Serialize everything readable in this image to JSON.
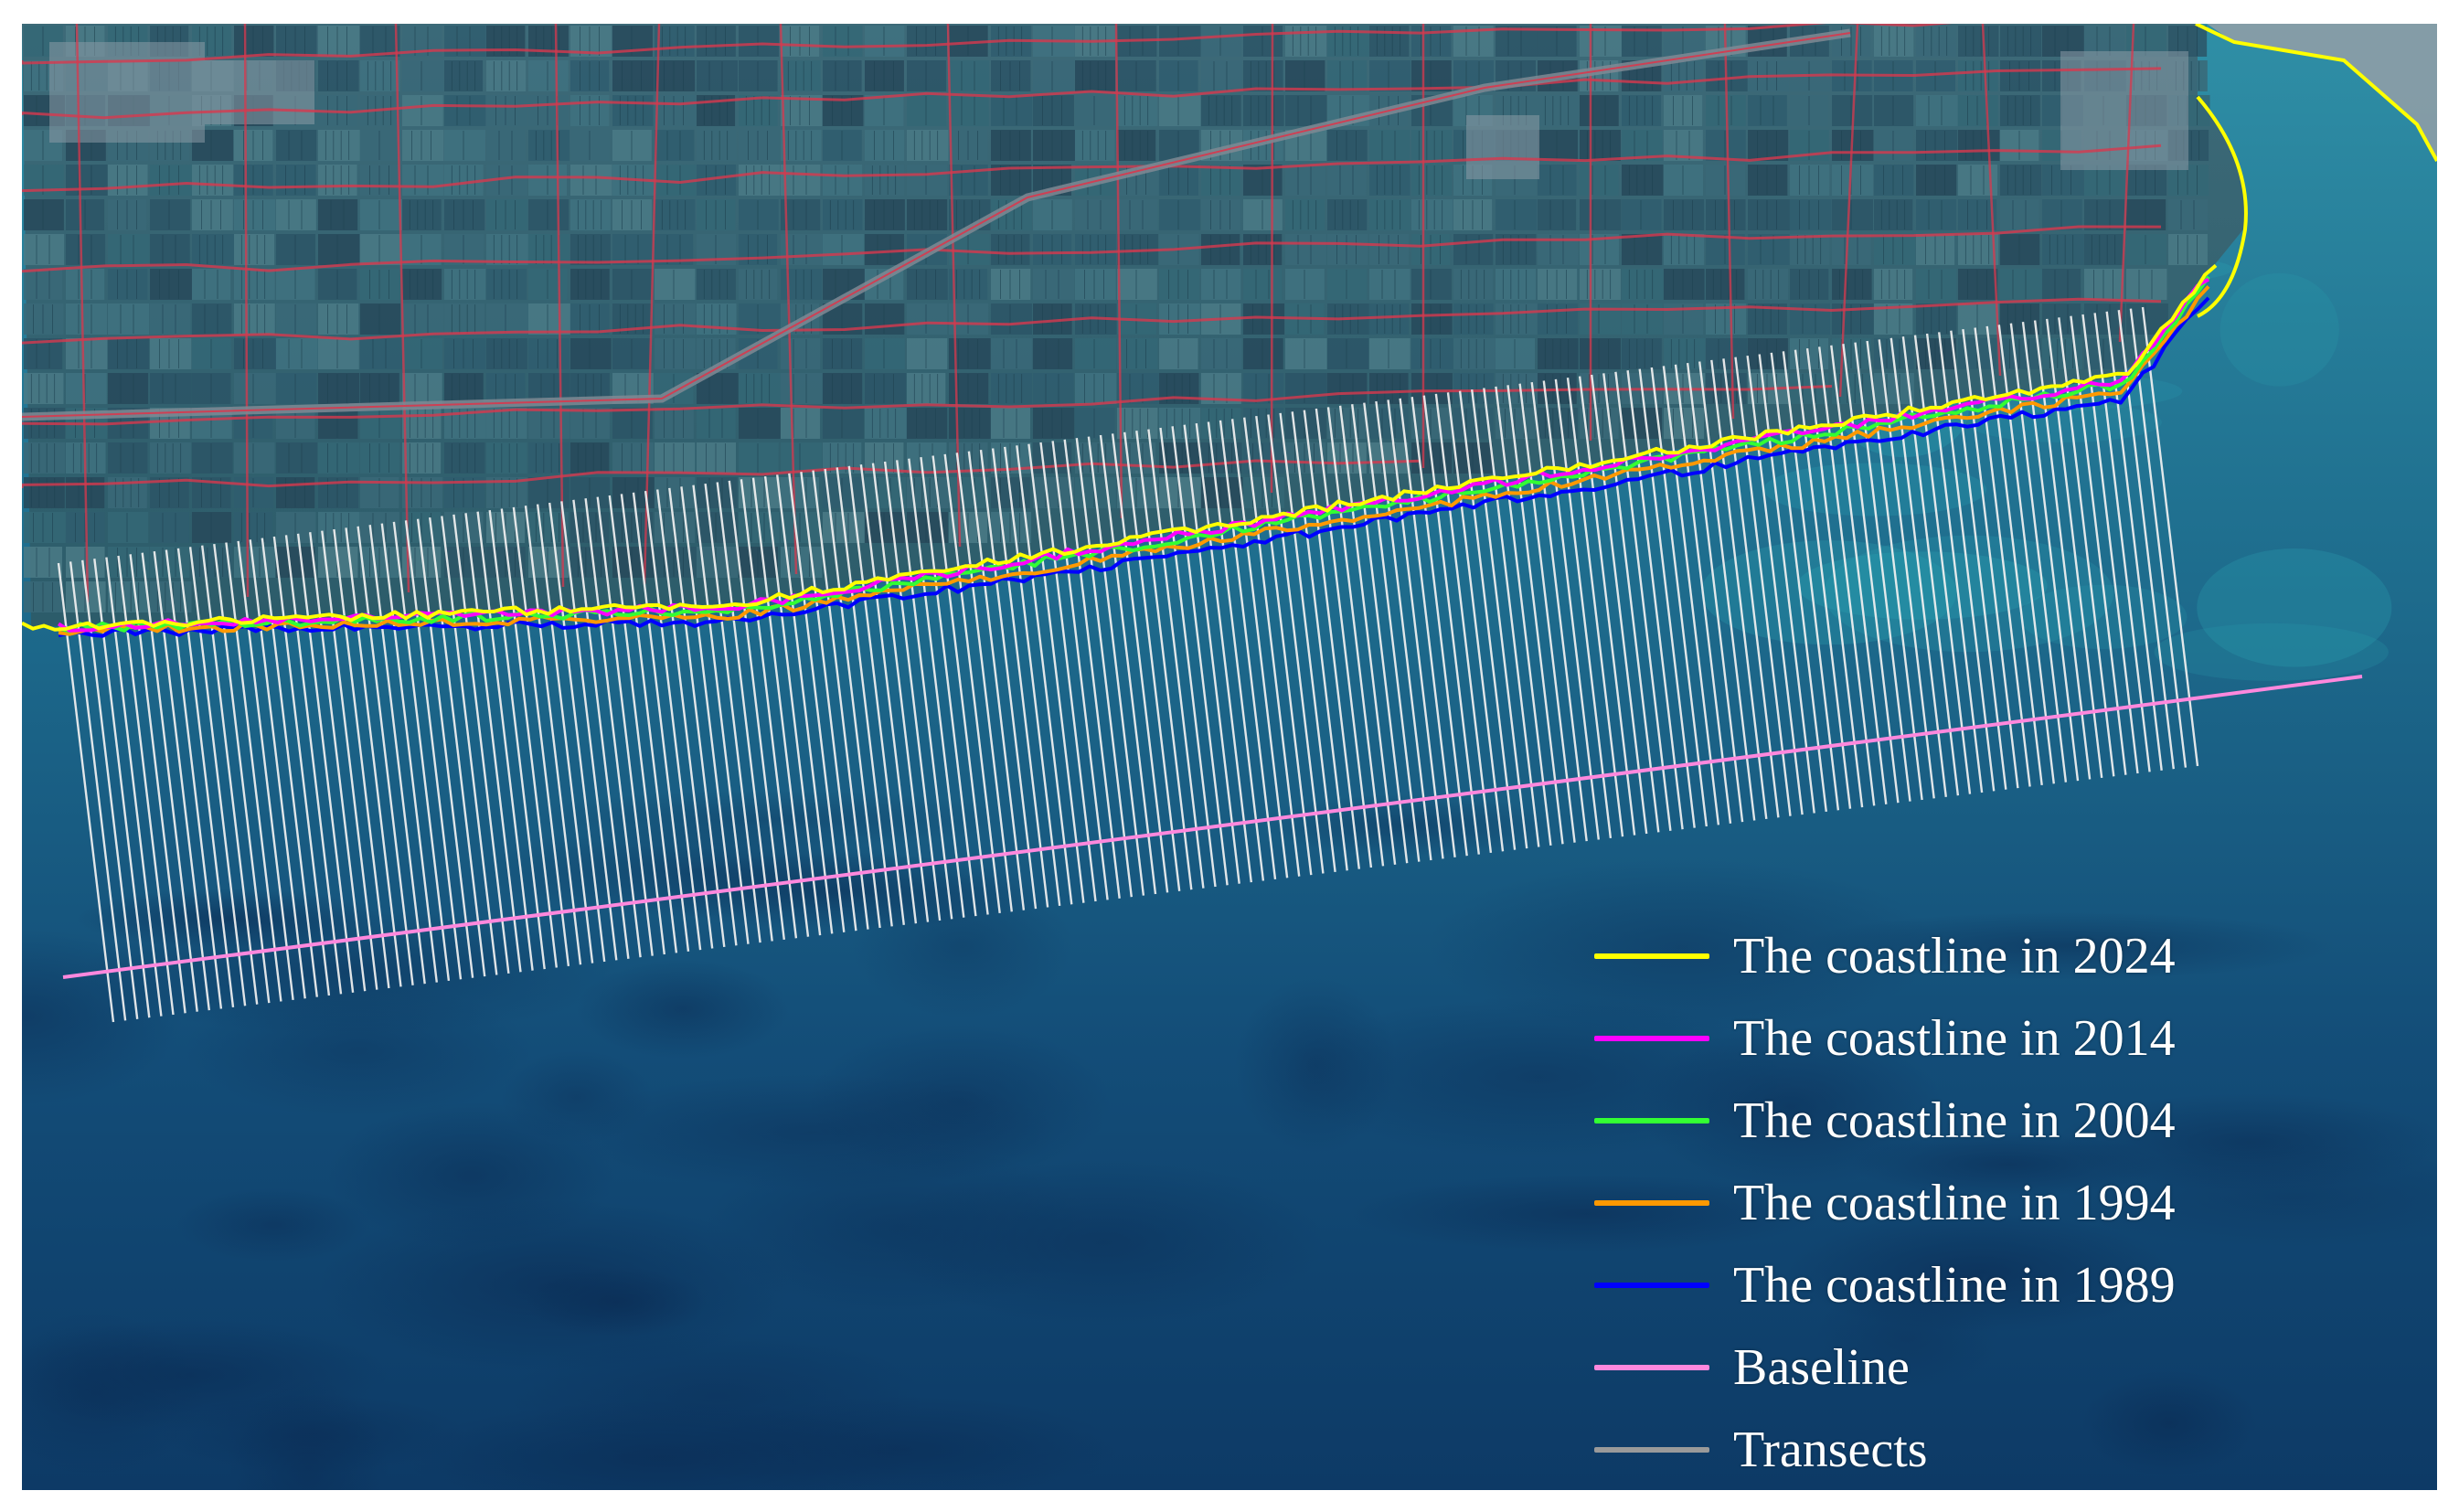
{
  "map": {
    "legend": [
      {
        "label": "The coastline in 2024",
        "color": "#ffff00",
        "key": "coastline-2024"
      },
      {
        "label": "The coastline in 2014",
        "color": "#ff00ff",
        "key": "coastline-2014"
      },
      {
        "label": "The coastline in 2004",
        "color": "#33ff33",
        "key": "coastline-2004"
      },
      {
        "label": "The coastline in 1994",
        "color": "#ff9900",
        "key": "coastline-1994"
      },
      {
        "label": "The coastline in 1989",
        "color": "#0000ff",
        "key": "coastline-1989"
      },
      {
        "label": "Baseline",
        "color": "#ff88dd",
        "key": "baseline"
      },
      {
        "label": "Transects",
        "color": "#9a9a9a",
        "key": "transects"
      }
    ],
    "colors": {
      "land_field": "#2e5f70",
      "land_road": "#d8384e",
      "sea_shallow": "#2a8aa4",
      "sea_deep": "#0c3460",
      "transect": "#f2f2f2"
    }
  }
}
